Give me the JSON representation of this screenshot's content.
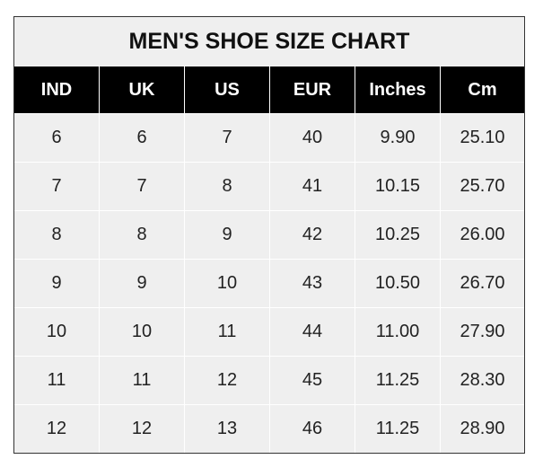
{
  "title": "MEN'S SHOE SIZE CHART",
  "chart_data": {
    "type": "table",
    "title": "MEN'S SHOE SIZE CHART",
    "columns": [
      "IND",
      "UK",
      "US",
      "EUR",
      "Inches",
      "Cm"
    ],
    "rows": [
      [
        "6",
        "6",
        "7",
        "40",
        "9.90",
        "25.10"
      ],
      [
        "7",
        "7",
        "8",
        "41",
        "10.15",
        "25.70"
      ],
      [
        "8",
        "8",
        "9",
        "42",
        "10.25",
        "26.00"
      ],
      [
        "9",
        "9",
        "10",
        "43",
        "10.50",
        "26.70"
      ],
      [
        "10",
        "10",
        "11",
        "44",
        "11.00",
        "27.90"
      ],
      [
        "11",
        "11",
        "12",
        "45",
        "11.25",
        "28.30"
      ],
      [
        "12",
        "12",
        "13",
        "46",
        "11.25",
        "28.90"
      ]
    ]
  }
}
